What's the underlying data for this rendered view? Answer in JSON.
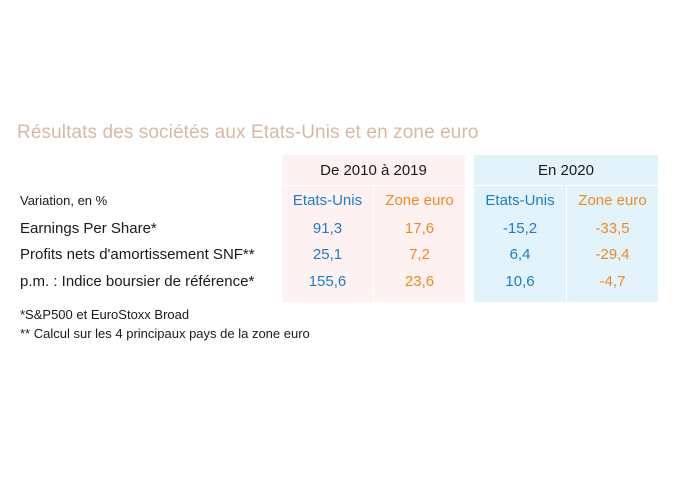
{
  "title": "Résultats des sociétés aux Etats-Unis et en zone euro",
  "periods": {
    "p1": "De 2010 à 2019",
    "p2": "En 2020"
  },
  "columns": {
    "us": "Etats-Unis",
    "euro": "Zone euro"
  },
  "unit_label": "Variation, en %",
  "rows": [
    {
      "label": "Earnings Per Share*",
      "p1_us": "91,3",
      "p1_euro": "17,6",
      "p2_us": "-15,2",
      "p2_euro": "-33,5"
    },
    {
      "label": "Profits nets d'amortissement SNF**",
      "p1_us": "25,1",
      "p1_euro": "7,2",
      "p2_us": "6,4",
      "p2_euro": "-29,4"
    },
    {
      "label": "p.m. : Indice boursier de référence*",
      "p1_us": "155,6",
      "p1_euro": "23,6",
      "p2_us": "10,6",
      "p2_euro": "-4,7"
    }
  ],
  "notes": [
    "*S&P500 et EuroStoxx Broad",
    "** Calcul sur les 4 principaux pays de la zone euro"
  ],
  "colors": {
    "title": "#d9b8a4",
    "us": "#1f7cc8",
    "euro": "#f08a1c",
    "panel_2010_2019": "#fdf1f1",
    "panel_2020": "#e2f3fc"
  }
}
